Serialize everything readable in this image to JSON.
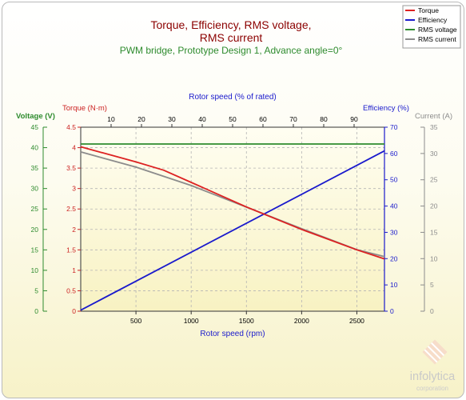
{
  "chart_data": {
    "type": "line",
    "title": "Torque, Efficiency, RMS voltage,",
    "title_line2": "RMS current",
    "subtitle": "PWM bridge, Prototype Design 1, Advance angle=0°",
    "xlabel": "Rotor speed (rpm)",
    "x_top_label": "Rotor speed (% of rated)",
    "xlim": [
      0,
      2750
    ],
    "x_ticks": [
      500,
      1000,
      1500,
      2000,
      2500
    ],
    "x_top_ticks": [
      10,
      20,
      30,
      40,
      50,
      60,
      70,
      80,
      90
    ],
    "axes": {
      "voltage": {
        "label": "Voltage (V)",
        "min": 0,
        "max": 45,
        "ticks": [
          0,
          5,
          10,
          15,
          20,
          25,
          30,
          35,
          40,
          45
        ],
        "color": "#2e8b2e"
      },
      "torque": {
        "label": "Torque (N·m)",
        "min": 0,
        "max": 4.5,
        "ticks": [
          "0",
          "0.5",
          "1",
          "1.5",
          "2",
          "2.5",
          "3",
          "3.5",
          "4",
          "4.5"
        ],
        "color": "#cc2222"
      },
      "efficiency": {
        "label": "Efficiency (%)",
        "min": 0,
        "max": 70,
        "ticks": [
          0,
          10,
          20,
          30,
          40,
          50,
          60,
          70
        ],
        "color": "#1a1acc"
      },
      "current": {
        "label": "Current (A)",
        "min": 0,
        "max": 35,
        "ticks": [
          0,
          5,
          10,
          15,
          20,
          25,
          30,
          35
        ],
        "color": "#8c8c8c"
      }
    },
    "grid": true,
    "legend_position": "top-right",
    "series": [
      {
        "name": "Torque",
        "axis": "torque",
        "color": "#dd2222",
        "x": [
          0,
          500,
          750,
          1000,
          1500,
          2000,
          2500,
          2750
        ],
        "y": [
          4.02,
          3.65,
          3.45,
          3.15,
          2.55,
          2.0,
          1.5,
          1.28
        ]
      },
      {
        "name": "Efficiency",
        "axis": "efficiency",
        "color": "#1a1acc",
        "x": [
          0,
          2750
        ],
        "y": [
          0.4,
          61
        ]
      },
      {
        "name": "RMS voltage",
        "axis": "voltage",
        "color": "#2e8b2e",
        "x": [
          0,
          2750
        ],
        "y": [
          40.9,
          40.9
        ]
      },
      {
        "name": "RMS current",
        "axis": "current",
        "color": "#8c8c8c",
        "x": [
          0,
          500,
          1000,
          1500,
          2000,
          2500,
          2750
        ],
        "y": [
          30.3,
          27.4,
          23.9,
          19.8,
          15.7,
          11.7,
          10.4
        ]
      }
    ]
  },
  "logo": {
    "name": "infolytica",
    "tagline": "corporation"
  }
}
